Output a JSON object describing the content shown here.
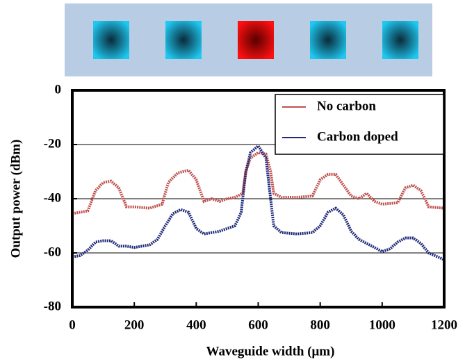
{
  "chart_data": {
    "type": "line",
    "xlabel": "Waveguide width (μm)",
    "ylabel": "Output power (dBm)",
    "xlim": [
      0,
      1200
    ],
    "xticks": [
      0,
      200,
      400,
      600,
      800,
      1000,
      1200
    ],
    "ylim": [
      -80,
      0
    ],
    "yticks": [
      0,
      -20,
      -40,
      -60,
      -80
    ],
    "grid": true,
    "legend": "upper right",
    "series": [
      {
        "name": "No carbon",
        "color": "#c0504d",
        "x": [
          0,
          25,
          50,
          75,
          100,
          125,
          150,
          175,
          200,
          250,
          290,
          310,
          340,
          375,
          400,
          425,
          450,
          475,
          500,
          525,
          550,
          560,
          575,
          600,
          625,
          640,
          650,
          675,
          725,
          775,
          800,
          825,
          850,
          875,
          900,
          925,
          950,
          975,
          1000,
          1050,
          1075,
          1100,
          1125,
          1150,
          1200
        ],
        "values": [
          -45.5,
          -45,
          -44.5,
          -37,
          -34,
          -33.5,
          -36,
          -43,
          -43,
          -43.5,
          -42,
          -34,
          -30.5,
          -29.5,
          -33,
          -41,
          -40,
          -41,
          -40,
          -39.5,
          -38,
          -30,
          -25,
          -23,
          -23.5,
          -30,
          -38,
          -39.5,
          -39.5,
          -39,
          -33,
          -31,
          -31,
          -35,
          -39,
          -40,
          -38,
          -41,
          -42,
          -41.5,
          -36,
          -35,
          -37,
          -43,
          -43.5
        ]
      },
      {
        "name": "Carbon doped",
        "color": "#1f2a7a",
        "x": [
          0,
          25,
          50,
          75,
          100,
          125,
          150,
          175,
          200,
          250,
          275,
          300,
          325,
          350,
          375,
          400,
          425,
          450,
          475,
          500,
          525,
          545,
          560,
          575,
          600,
          625,
          640,
          650,
          675,
          725,
          775,
          800,
          825,
          850,
          875,
          900,
          925,
          950,
          975,
          1000,
          1025,
          1050,
          1075,
          1100,
          1125,
          1150,
          1200
        ],
        "values": [
          -61.5,
          -61,
          -59,
          -56,
          -55.5,
          -55.5,
          -57.5,
          -57.5,
          -58,
          -57,
          -55,
          -50,
          -45.5,
          -44,
          -45,
          -51,
          -53,
          -52.5,
          -52,
          -51,
          -50,
          -45,
          -30,
          -23,
          -20.5,
          -25,
          -40,
          -50,
          -52.5,
          -53,
          -52.5,
          -50,
          -45,
          -43.5,
          -46,
          -52,
          -55,
          -56.5,
          -58,
          -59.5,
          -58.5,
          -56,
          -54.5,
          -54.5,
          -56.5,
          -60,
          -62.5
        ]
      }
    ]
  }
}
